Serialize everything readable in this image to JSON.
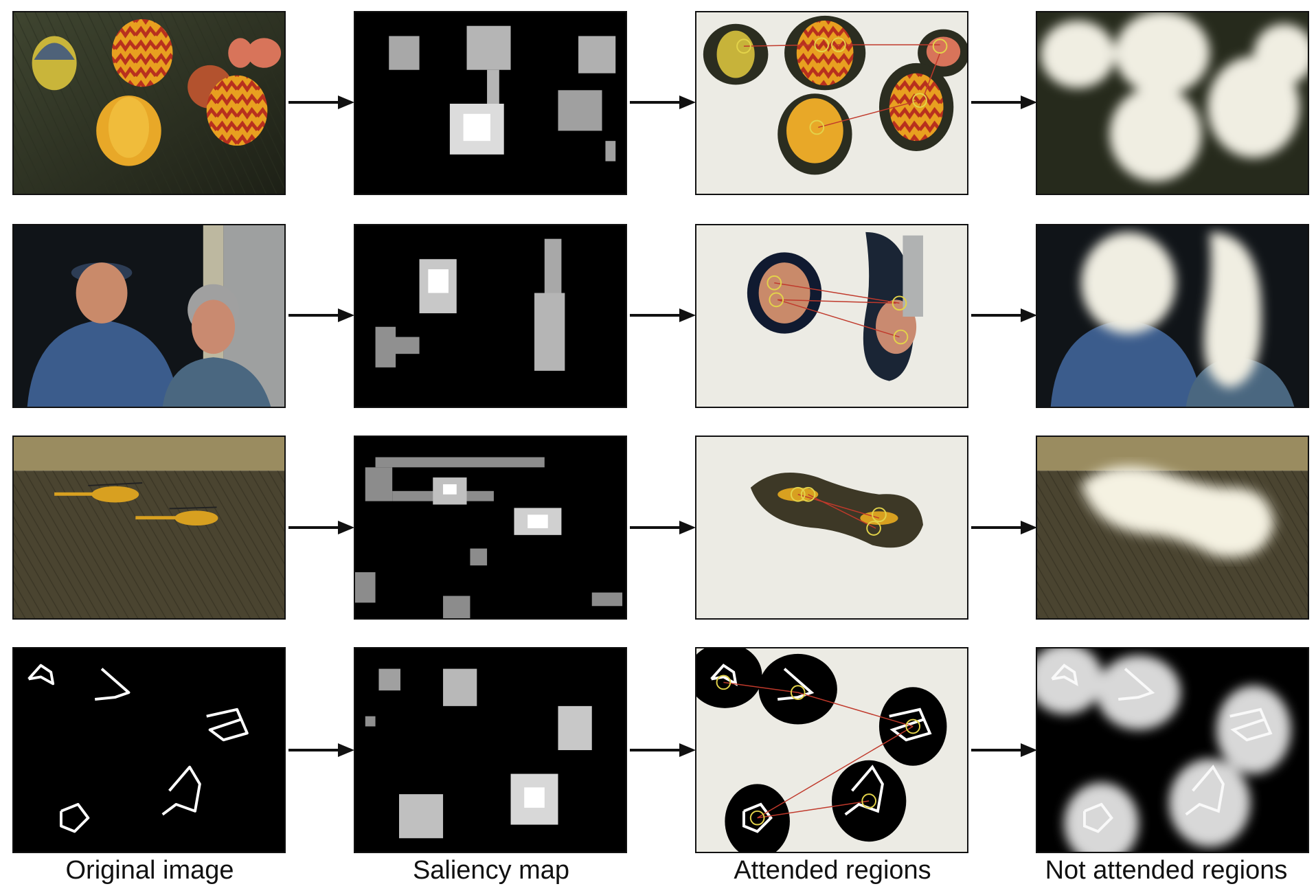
{
  "captions": {
    "original": "Original image",
    "saliency": "Saliency map",
    "attended": "Attended regions",
    "not_attended": "Not attended regions"
  },
  "rows": [
    {
      "scene": "hot-air balloons over field"
    },
    {
      "scene": "two people portrait"
    },
    {
      "scene": "two helicopters on field"
    },
    {
      "scene": "white line shapes on black"
    }
  ]
}
